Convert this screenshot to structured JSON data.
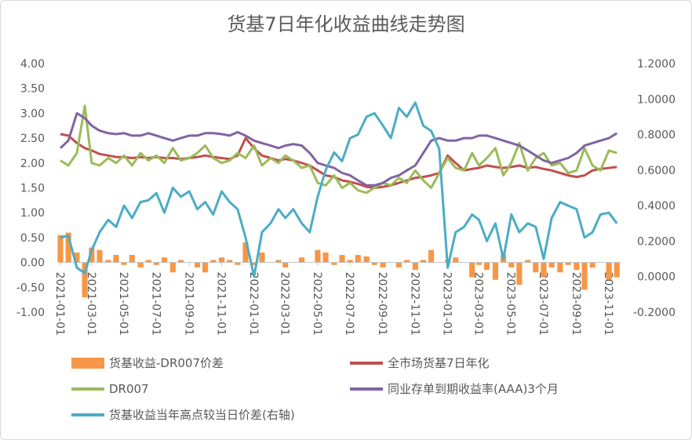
{
  "chart_data": {
    "type": "combo",
    "title": "货基7日年化收益曲线走势图",
    "x": [
      "2021-01-01",
      "2021-01-16",
      "2021-02-01",
      "2021-02-16",
      "2021-03-01",
      "2021-03-16",
      "2021-04-01",
      "2021-04-16",
      "2021-05-01",
      "2021-05-16",
      "2021-06-01",
      "2021-06-16",
      "2021-07-01",
      "2021-07-16",
      "2021-08-01",
      "2021-08-16",
      "2021-09-01",
      "2021-09-16",
      "2021-10-01",
      "2021-10-16",
      "2021-11-01",
      "2021-11-16",
      "2021-12-01",
      "2021-12-16",
      "2022-01-01",
      "2022-01-16",
      "2022-02-01",
      "2022-02-16",
      "2022-03-01",
      "2022-03-16",
      "2022-04-01",
      "2022-04-16",
      "2022-05-01",
      "2022-05-16",
      "2022-06-01",
      "2022-06-16",
      "2022-07-01",
      "2022-07-16",
      "2022-08-01",
      "2022-08-16",
      "2022-09-01",
      "2022-09-16",
      "2022-10-01",
      "2022-10-16",
      "2022-11-01",
      "2022-11-16",
      "2022-12-01",
      "2022-12-16",
      "2023-01-01",
      "2023-01-16",
      "2023-02-01",
      "2023-02-16",
      "2023-03-01",
      "2023-03-16",
      "2023-04-01",
      "2023-04-16",
      "2023-05-01",
      "2023-05-16",
      "2023-06-01",
      "2023-06-16",
      "2023-07-01",
      "2023-07-16",
      "2023-08-01",
      "2023-08-16",
      "2023-09-01",
      "2023-09-16",
      "2023-10-01",
      "2023-10-16",
      "2023-11-01",
      "2023-11-16"
    ],
    "xlim": [
      "2021-01-01",
      "2023-11-23"
    ],
    "xticks": [
      "2021-01-01",
      "2021-03-01",
      "2021-05-01",
      "2021-07-01",
      "2021-09-01",
      "2021-11-01",
      "2022-01-01",
      "2022-03-01",
      "2022-05-01",
      "2022-07-01",
      "2022-09-01",
      "2022-11-01",
      "2023-01-01",
      "2023-03-01",
      "2023-05-01",
      "2023-07-01",
      "2023-09-01",
      "2023-11-01"
    ],
    "ylim": [
      -1,
      4
    ],
    "yticks": [
      {
        "value": -1,
        "label": "-1.00"
      },
      {
        "value": -0.5,
        "label": "-0.50"
      },
      {
        "value": 0,
        "label": "0.00"
      },
      {
        "value": 0.5,
        "label": "0.50"
      },
      {
        "value": 1,
        "label": "1.00"
      },
      {
        "value": 1.5,
        "label": "1.50"
      },
      {
        "value": 2,
        "label": "2.00"
      },
      {
        "value": 2.5,
        "label": "2.50"
      },
      {
        "value": 3,
        "label": "3.00"
      },
      {
        "value": 3.5,
        "label": "3.50"
      },
      {
        "value": 4,
        "label": "4.00"
      }
    ],
    "y2lim": [
      -0.2,
      1.2
    ],
    "y2ticks": [
      {
        "value": -0.2,
        "label": "-0.2000"
      },
      {
        "value": 0,
        "label": "0.0000"
      },
      {
        "value": 0.2,
        "label": "0.2000"
      },
      {
        "value": 0.4,
        "label": "0.4000"
      },
      {
        "value": 0.6,
        "label": "0.6000"
      },
      {
        "value": 0.8,
        "label": "0.8000"
      },
      {
        "value": 1,
        "label": "1.0000"
      },
      {
        "value": 1.2,
        "label": "1.2000"
      }
    ],
    "grid": false,
    "legend": "bottom",
    "series": [
      {
        "name": "货基收益-DR007价差",
        "type": "bar",
        "color": "#f79646",
        "values": [
          0.55,
          0.6,
          0.2,
          -0.7,
          0.3,
          0.25,
          0.05,
          0.15,
          -0.05,
          0.15,
          -0.1,
          0.05,
          -0.05,
          0.1,
          -0.2,
          0.05,
          0.0,
          -0.1,
          -0.2,
          0.05,
          0.1,
          0.05,
          -0.05,
          0.4,
          -0.05,
          0.2,
          0.0,
          0.05,
          -0.1,
          0.0,
          0.1,
          0.0,
          0.25,
          0.2,
          -0.05,
          0.15,
          0.05,
          0.15,
          0.12,
          -0.05,
          -0.1,
          0.0,
          -0.1,
          0.05,
          -0.15,
          0.05,
          0.25,
          0.0,
          0.05,
          0.1,
          0.0,
          -0.3,
          -0.05,
          -0.15,
          -0.35,
          0.15,
          -0.1,
          -0.45,
          0.05,
          -0.2,
          -0.3,
          -0.1,
          -0.2,
          -0.05,
          -0.15,
          -0.55,
          -0.1,
          0.0,
          -0.35,
          -0.3
        ]
      },
      {
        "name": "全市场货基7日年化",
        "type": "line",
        "color": "#c0504d",
        "values": [
          2.58,
          2.55,
          2.4,
          2.3,
          2.25,
          2.18,
          2.15,
          2.12,
          2.12,
          2.1,
          2.12,
          2.1,
          2.12,
          2.1,
          2.1,
          2.08,
          2.1,
          2.12,
          2.15,
          2.12,
          2.1,
          2.08,
          2.15,
          2.5,
          2.3,
          2.15,
          2.1,
          2.05,
          2.08,
          2.05,
          2.0,
          1.95,
          1.85,
          1.75,
          1.72,
          1.65,
          1.62,
          1.58,
          1.52,
          1.5,
          1.52,
          1.55,
          1.6,
          1.65,
          1.7,
          1.72,
          1.75,
          1.8,
          2.15,
          2.0,
          1.85,
          1.88,
          1.9,
          1.95,
          1.92,
          1.9,
          1.92,
          1.95,
          1.9,
          1.92,
          1.88,
          1.85,
          1.8,
          1.75,
          1.72,
          1.75,
          1.85,
          1.88,
          1.9,
          1.92
        ]
      },
      {
        "name": "DR007",
        "type": "line",
        "color": "#9bbb59",
        "values": [
          2.05,
          1.95,
          2.2,
          3.15,
          2.0,
          1.95,
          2.1,
          2.0,
          2.15,
          1.95,
          2.2,
          2.05,
          2.15,
          2.0,
          2.3,
          2.05,
          2.1,
          2.2,
          2.35,
          2.1,
          2.0,
          2.05,
          2.2,
          2.1,
          2.35,
          1.95,
          2.1,
          2.0,
          2.15,
          2.05,
          1.9,
          1.95,
          1.6,
          1.55,
          1.75,
          1.5,
          1.6,
          1.45,
          1.4,
          1.5,
          1.6,
          1.55,
          1.7,
          1.6,
          1.85,
          1.65,
          1.5,
          1.8,
          2.1,
          1.9,
          1.85,
          2.2,
          1.95,
          2.1,
          2.3,
          1.75,
          2.0,
          2.4,
          1.85,
          2.1,
          2.2,
          1.95,
          2.0,
          1.8,
          1.85,
          2.3,
          1.95,
          1.85,
          2.25,
          2.2
        ]
      },
      {
        "name": "同业存单到期收益率(AAA)3个月",
        "type": "line",
        "color": "#8064a2",
        "values": [
          2.3,
          2.45,
          3.0,
          2.9,
          2.75,
          2.65,
          2.6,
          2.58,
          2.6,
          2.55,
          2.55,
          2.6,
          2.55,
          2.5,
          2.45,
          2.5,
          2.55,
          2.55,
          2.6,
          2.6,
          2.58,
          2.55,
          2.62,
          2.55,
          2.45,
          2.4,
          2.35,
          2.3,
          2.35,
          2.38,
          2.35,
          2.2,
          2.0,
          1.95,
          1.9,
          1.8,
          1.75,
          1.65,
          1.55,
          1.55,
          1.6,
          1.7,
          1.75,
          1.85,
          1.95,
          2.2,
          2.45,
          2.5,
          2.45,
          2.45,
          2.5,
          2.5,
          2.55,
          2.55,
          2.5,
          2.45,
          2.4,
          2.35,
          2.25,
          2.15,
          2.05,
          2.0,
          2.05,
          2.1,
          2.2,
          2.35,
          2.4,
          2.45,
          2.5,
          2.6
        ]
      },
      {
        "name": "货基收益当年高点较当日价差(右轴)",
        "type": "line",
        "axis": "y2",
        "color": "#4bacc6",
        "values": [
          0.22,
          0.23,
          0.05,
          0.02,
          0.15,
          0.25,
          0.32,
          0.28,
          0.4,
          0.33,
          0.42,
          0.43,
          0.47,
          0.36,
          0.5,
          0.45,
          0.48,
          0.38,
          0.42,
          0.35,
          0.48,
          0.42,
          0.38,
          0.22,
          0.0,
          0.25,
          0.3,
          0.38,
          0.33,
          0.38,
          0.3,
          0.25,
          0.45,
          0.6,
          0.7,
          0.65,
          0.78,
          0.8,
          0.9,
          0.92,
          0.85,
          0.78,
          0.95,
          0.9,
          0.98,
          0.85,
          0.82,
          0.72,
          0.05,
          0.25,
          0.28,
          0.35,
          0.32,
          0.2,
          0.3,
          0.1,
          0.35,
          0.25,
          0.3,
          0.28,
          0.1,
          0.33,
          0.42,
          0.4,
          0.38,
          0.22,
          0.25,
          0.35,
          0.36,
          0.3
        ]
      }
    ]
  }
}
